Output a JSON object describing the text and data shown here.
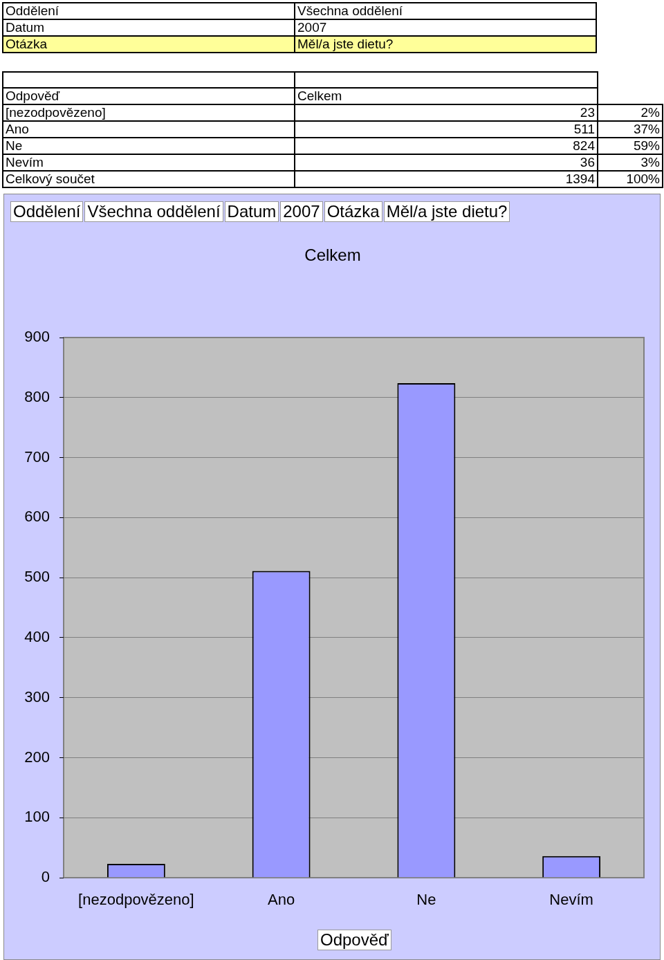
{
  "chart_data": {
    "type": "bar",
    "title": "Celkem",
    "xlabel": "Odpověď",
    "categories": [
      "[nezodpovězeno]",
      "Ano",
      "Ne",
      "Nevím"
    ],
    "values": [
      23,
      511,
      824,
      36
    ],
    "color": "#9999ff",
    "ylim": [
      0,
      900
    ],
    "yticks": [
      0,
      100,
      200,
      300,
      400,
      500,
      600,
      700,
      800,
      900
    ],
    "grid": "y",
    "annotations": [
      "Oddělení",
      "Všechna oddělení",
      "Datum",
      "2007",
      "Otázka",
      "Měl/a jste dietu?",
      "23",
      "2%",
      "511",
      "37%",
      "824",
      "59%",
      "36",
      "3%",
      "Celkový součet",
      "1394",
      "100%"
    ]
  }
}
